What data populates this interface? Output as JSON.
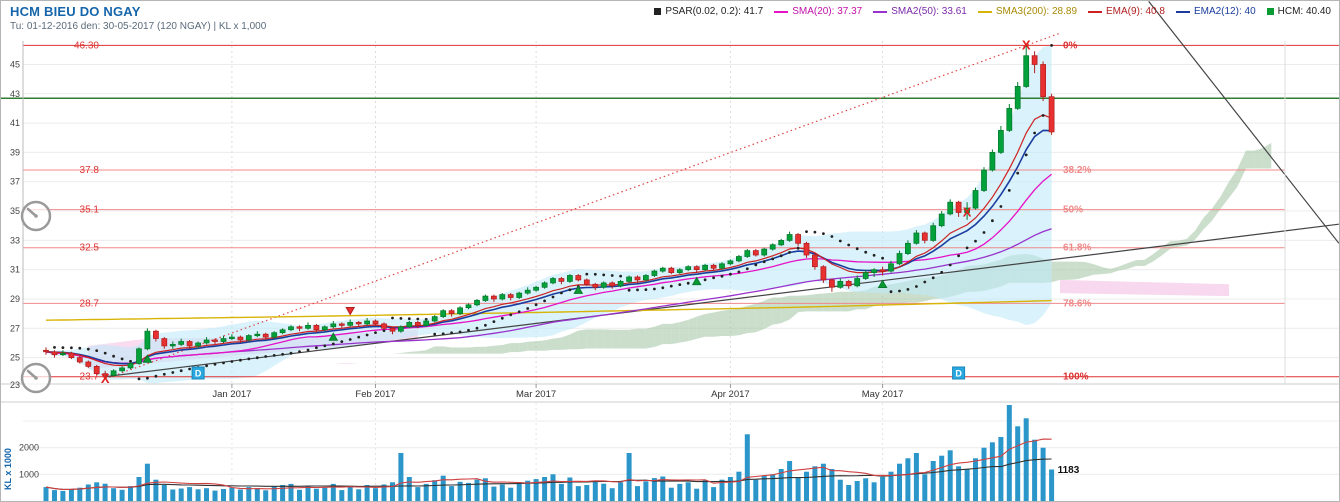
{
  "header": {
    "title": "HCM BIEU DO NGAY",
    "subtitle": "Tu: 01-12-2016 den: 30-05-2017 (120 NGAY) | KL x 1,000"
  },
  "legend": [
    {
      "label": "PSAR(0.02, 0.2): 41.7",
      "color": "#222222",
      "marker": "square",
      "text_color": "#222222"
    },
    {
      "label": "SMA(20): 37.37",
      "color": "#e612c8",
      "marker": "line",
      "text_color": "#c011a8"
    },
    {
      "label": "SMA2(50): 33.61",
      "color": "#9932cc",
      "marker": "line",
      "text_color": "#7a28a8"
    },
    {
      "label": "SMA3(200): 28.89",
      "color": "#d8b407",
      "marker": "line",
      "text_color": "#a88a06"
    },
    {
      "label": "EMA(9): 40.8",
      "color": "#cc2222",
      "marker": "line",
      "text_color": "#b02020"
    },
    {
      "label": "EMA2(12): 40",
      "color": "#1a3c9e",
      "marker": "line",
      "text_color": "#1a3c9e"
    },
    {
      "label": "HCM: 40.40",
      "color": "#0a9a32",
      "marker": "square",
      "text_color": "#222222"
    }
  ],
  "chart_data": {
    "type": "candlestick+volume",
    "title": "HCM BIEU DO NGAY",
    "y_axis": {
      "min": 23,
      "max": 45,
      "step": 2
    },
    "months": [
      {
        "label": "Jan 2017",
        "index": 22
      },
      {
        "label": "Feb 2017",
        "index": 39
      },
      {
        "label": "Mar 2017",
        "index": 58
      },
      {
        "label": "Apr 2017",
        "index": 81
      },
      {
        "label": "May 2017",
        "index": 99
      }
    ],
    "candles": [
      [
        25.5,
        25.7,
        25.2,
        25.4,
        520
      ],
      [
        25.4,
        25.5,
        25.0,
        25.2,
        410
      ],
      [
        25.2,
        25.5,
        25.1,
        25.3,
        380
      ],
      [
        25.3,
        25.4,
        24.9,
        25.0,
        450
      ],
      [
        25.0,
        25.1,
        24.6,
        24.7,
        500
      ],
      [
        24.7,
        24.8,
        24.3,
        24.4,
        620
      ],
      [
        24.4,
        24.5,
        23.8,
        23.9,
        700
      ],
      [
        23.9,
        24.1,
        23.55,
        23.8,
        650
      ],
      [
        23.8,
        24.2,
        23.7,
        24.1,
        480
      ],
      [
        24.1,
        24.4,
        24.0,
        24.3,
        420
      ],
      [
        24.3,
        24.7,
        24.2,
        24.6,
        560
      ],
      [
        24.6,
        25.7,
        24.5,
        25.6,
        900
      ],
      [
        25.6,
        27.0,
        25.5,
        26.8,
        1400
      ],
      [
        26.8,
        26.9,
        26.1,
        26.3,
        800
      ],
      [
        26.3,
        26.4,
        25.6,
        25.8,
        600
      ],
      [
        25.8,
        26.1,
        25.6,
        25.9,
        430
      ],
      [
        25.9,
        26.3,
        25.8,
        26.1,
        470
      ],
      [
        26.1,
        26.2,
        25.6,
        25.8,
        520
      ],
      [
        25.8,
        26.1,
        25.6,
        26.0,
        440
      ],
      [
        26.0,
        26.4,
        25.9,
        26.2,
        480
      ],
      [
        26.2,
        26.3,
        25.9,
        26.1,
        390
      ],
      [
        26.1,
        26.5,
        26.0,
        26.3,
        450
      ],
      [
        26.3,
        26.6,
        26.2,
        26.4,
        500
      ],
      [
        26.4,
        26.5,
        26.0,
        26.2,
        430
      ],
      [
        26.2,
        26.6,
        26.1,
        26.5,
        520
      ],
      [
        26.5,
        26.8,
        26.4,
        26.6,
        460
      ],
      [
        26.6,
        26.7,
        26.2,
        26.4,
        400
      ],
      [
        26.4,
        26.8,
        26.3,
        26.7,
        550
      ],
      [
        26.7,
        27.0,
        26.6,
        26.9,
        600
      ],
      [
        26.9,
        27.2,
        26.8,
        27.1,
        640
      ],
      [
        27.1,
        27.2,
        26.8,
        27.0,
        420
      ],
      [
        27.0,
        27.4,
        26.9,
        27.2,
        580
      ],
      [
        27.2,
        27.3,
        26.7,
        26.9,
        460
      ],
      [
        26.9,
        27.2,
        26.8,
        27.1,
        500
      ],
      [
        27.1,
        27.5,
        27.0,
        27.3,
        640
      ],
      [
        27.3,
        27.4,
        27.0,
        27.2,
        410
      ],
      [
        27.2,
        27.6,
        27.1,
        27.4,
        560
      ],
      [
        27.4,
        27.5,
        27.1,
        27.3,
        440
      ],
      [
        27.3,
        27.7,
        27.2,
        27.5,
        600
      ],
      [
        27.5,
        27.6,
        27.2,
        27.3,
        480
      ],
      [
        27.3,
        27.4,
        26.9,
        27.0,
        620
      ],
      [
        27.0,
        27.1,
        26.6,
        26.8,
        700
      ],
      [
        26.8,
        27.2,
        26.7,
        27.1,
        1800
      ],
      [
        27.1,
        27.5,
        27.0,
        27.4,
        900
      ],
      [
        27.4,
        27.5,
        27.0,
        27.2,
        520
      ],
      [
        27.2,
        27.6,
        27.1,
        27.5,
        640
      ],
      [
        27.5,
        27.9,
        27.4,
        27.8,
        780
      ],
      [
        27.8,
        28.3,
        27.7,
        28.2,
        950
      ],
      [
        28.2,
        28.3,
        27.8,
        28.0,
        560
      ],
      [
        28.0,
        28.5,
        27.9,
        28.4,
        720
      ],
      [
        28.4,
        28.7,
        28.3,
        28.6,
        680
      ],
      [
        28.6,
        29.0,
        28.5,
        28.9,
        800
      ],
      [
        28.9,
        29.3,
        28.8,
        29.2,
        850
      ],
      [
        29.2,
        29.3,
        28.8,
        29.0,
        540
      ],
      [
        29.0,
        29.4,
        28.9,
        29.3,
        620
      ],
      [
        29.3,
        29.4,
        28.9,
        29.1,
        500
      ],
      [
        29.1,
        29.5,
        29.0,
        29.4,
        700
      ],
      [
        29.4,
        29.8,
        29.3,
        29.6,
        760
      ],
      [
        29.6,
        29.9,
        29.5,
        29.8,
        820
      ],
      [
        29.8,
        30.2,
        29.7,
        30.1,
        900
      ],
      [
        30.1,
        30.5,
        30.0,
        30.4,
        1000
      ],
      [
        30.4,
        30.5,
        30.0,
        30.2,
        640
      ],
      [
        30.2,
        30.7,
        30.1,
        30.6,
        880
      ],
      [
        30.6,
        30.7,
        30.2,
        30.3,
        560
      ],
      [
        30.3,
        30.4,
        29.9,
        30.0,
        600
      ],
      [
        30.0,
        30.1,
        29.6,
        29.8,
        720
      ],
      [
        29.8,
        30.2,
        29.7,
        30.1,
        650
      ],
      [
        30.1,
        30.2,
        29.7,
        29.9,
        480
      ],
      [
        29.9,
        30.3,
        29.8,
        30.2,
        700
      ],
      [
        30.2,
        30.6,
        30.1,
        30.5,
        1800
      ],
      [
        30.5,
        30.6,
        30.1,
        30.3,
        560
      ],
      [
        30.3,
        30.7,
        30.2,
        30.6,
        740
      ],
      [
        30.6,
        31.0,
        30.5,
        30.9,
        860
      ],
      [
        30.9,
        31.2,
        30.8,
        31.1,
        920
      ],
      [
        31.1,
        31.2,
        30.7,
        30.8,
        500
      ],
      [
        30.8,
        31.1,
        30.7,
        31.0,
        640
      ],
      [
        31.0,
        31.3,
        30.9,
        31.2,
        700
      ],
      [
        31.2,
        31.3,
        30.8,
        31.0,
        460
      ],
      [
        31.0,
        31.4,
        30.9,
        31.3,
        780
      ],
      [
        31.3,
        31.4,
        30.9,
        31.1,
        520
      ],
      [
        31.1,
        31.5,
        31.0,
        31.4,
        800
      ],
      [
        31.4,
        31.7,
        31.3,
        31.6,
        900
      ],
      [
        31.6,
        32.0,
        31.5,
        31.9,
        1100
      ],
      [
        31.9,
        32.4,
        31.8,
        32.3,
        2500
      ],
      [
        32.3,
        32.4,
        31.9,
        32.0,
        800
      ],
      [
        32.0,
        32.5,
        31.9,
        32.4,
        950
      ],
      [
        32.4,
        32.8,
        32.3,
        32.7,
        1000
      ],
      [
        32.7,
        33.1,
        32.6,
        33.0,
        1200
      ],
      [
        33.0,
        33.6,
        32.9,
        33.4,
        1500
      ],
      [
        33.4,
        33.5,
        32.6,
        32.8,
        900
      ],
      [
        32.8,
        32.9,
        31.8,
        32.0,
        1100
      ],
      [
        32.0,
        32.1,
        31.0,
        31.2,
        1300
      ],
      [
        31.2,
        31.3,
        30.1,
        30.3,
        1400
      ],
      [
        30.3,
        30.4,
        29.5,
        29.8,
        1200
      ],
      [
        29.8,
        30.4,
        29.7,
        30.2,
        800
      ],
      [
        30.2,
        30.3,
        29.7,
        29.9,
        600
      ],
      [
        29.9,
        30.6,
        29.8,
        30.4,
        750
      ],
      [
        30.4,
        31.0,
        30.3,
        30.8,
        850
      ],
      [
        30.8,
        31.1,
        30.5,
        31.0,
        700
      ],
      [
        31.0,
        31.2,
        30.6,
        30.9,
        900
      ],
      [
        30.9,
        31.6,
        30.8,
        31.4,
        1100
      ],
      [
        31.4,
        32.3,
        31.3,
        32.1,
        1400
      ],
      [
        32.1,
        33.0,
        32.0,
        32.8,
        1600
      ],
      [
        32.8,
        33.7,
        32.7,
        33.5,
        1800
      ],
      [
        33.5,
        33.6,
        32.8,
        33.0,
        1000
      ],
      [
        33.0,
        34.2,
        32.9,
        34.0,
        1500
      ],
      [
        34.0,
        35.0,
        33.9,
        34.8,
        1700
      ],
      [
        34.8,
        35.8,
        34.7,
        35.6,
        1900
      ],
      [
        35.6,
        35.7,
        34.6,
        34.9,
        1300
      ],
      [
        34.9,
        35.6,
        34.4,
        35.2,
        1200
      ],
      [
        35.2,
        36.6,
        35.1,
        36.4,
        1600
      ],
      [
        36.4,
        38.0,
        36.3,
        37.8,
        2000
      ],
      [
        37.8,
        39.2,
        37.7,
        39.0,
        2200
      ],
      [
        39.0,
        40.8,
        38.9,
        40.5,
        2400
      ],
      [
        40.5,
        42.3,
        40.4,
        42.0,
        3600
      ],
      [
        42.0,
        43.8,
        41.9,
        43.5,
        2800
      ],
      [
        43.5,
        46.3,
        43.4,
        45.6,
        3100
      ],
      [
        45.6,
        45.9,
        44.4,
        45.0,
        2300
      ],
      [
        45.0,
        45.2,
        42.5,
        42.8,
        2000
      ],
      [
        42.8,
        43.0,
        40.2,
        40.4,
        1183
      ]
    ],
    "fib_levels": [
      {
        "price": 46.3,
        "price_label": "46.30",
        "pct_label": "0%",
        "strong": true
      },
      {
        "price": 37.8,
        "price_label": "37.8",
        "pct_label": "38.2%",
        "strong": false
      },
      {
        "price": 35.1,
        "price_label": "35.1",
        "pct_label": "50%",
        "strong": false
      },
      {
        "price": 32.5,
        "price_label": "32.5",
        "pct_label": "61.8%",
        "strong": false
      },
      {
        "price": 28.7,
        "price_label": "28.7",
        "pct_label": "78.6%",
        "strong": false
      },
      {
        "price": 23.7,
        "price_label": "23.7",
        "pct_label": "100%",
        "strong": true
      }
    ],
    "alert_line": {
      "price": 42.7,
      "color": "#2e7d32"
    },
    "trendlines": [
      {
        "name": "uptrend-dotted",
        "style": "dotted",
        "color": "#e04545",
        "from": {
          "index": 7,
          "price": 23.55
        },
        "to": {
          "index": 120,
          "price": 47.13
        }
      },
      {
        "name": "support-line",
        "style": "solid",
        "color": "#444444",
        "from": {
          "index": 7,
          "price": 23.7
        },
        "to": {
          "index": 153,
          "price": 34.1
        }
      },
      {
        "name": "resistance-line",
        "style": "solid",
        "color": "#444444",
        "from": {
          "index": 130.5,
          "price": 49.3
        },
        "to": {
          "index": 153,
          "price": 32.8
        }
      }
    ],
    "markers_x": [
      {
        "index": 7,
        "price": 23.55,
        "label": "X"
      },
      {
        "index": 109,
        "price": 34.9,
        "label": "X"
      },
      {
        "index": 116,
        "price": 46.3,
        "label": "X"
      }
    ],
    "markers_d": [
      {
        "index": 18,
        "price": 23.95,
        "label": "D"
      },
      {
        "index": 108,
        "price": 23.95,
        "label": "D"
      }
    ],
    "signals": [
      {
        "index": 12,
        "type": "up"
      },
      {
        "index": 34,
        "type": "up"
      },
      {
        "index": 36,
        "type": "down"
      },
      {
        "index": 63,
        "type": "up"
      },
      {
        "index": 77,
        "type": "up"
      },
      {
        "index": 99,
        "type": "up"
      }
    ],
    "shaded_regions": [
      {
        "color": "#f2b1dd",
        "opacity": 0.45,
        "points": [
          [
            5,
            25.8
          ],
          [
            12,
            26.3
          ],
          [
            30,
            26.4
          ],
          [
            44,
            26.9
          ],
          [
            44,
            26.2
          ],
          [
            30,
            25.5
          ],
          [
            12,
            24.6
          ],
          [
            5,
            24.2
          ]
        ]
      },
      {
        "color": "#f2b1dd",
        "opacity": 0.5,
        "points": [
          [
            120,
            30.3
          ],
          [
            140,
            30.0
          ],
          [
            140,
            29.2
          ],
          [
            120,
            29.4
          ]
        ]
      }
    ],
    "indicators": {
      "sma200_points": [
        [
          0,
          27.55
        ],
        [
          30,
          27.8
        ],
        [
          60,
          28.1
        ],
        [
          90,
          28.45
        ],
        [
          119,
          28.89
        ]
      ],
      "psar_af": "0.02",
      "psar_afmax": "0.2"
    },
    "volume_axis": {
      "ticks": [
        {
          "value": 1000,
          "label": "1000"
        },
        {
          "value": 2000,
          "label": "2000"
        },
        {
          "value": 3000,
          "label": ""
        }
      ],
      "kl_label": "KL x 1000",
      "last_value_label": "1183"
    },
    "colors": {
      "up": "#00a13a",
      "up_border": "#047a2c",
      "down": "#e83030",
      "down_border": "#b01f1f",
      "volume": "#2b96c9",
      "bollinger": "#bfe9f8",
      "cloud_up": "#9fc3a0",
      "cloud_down": "#f2b1dd",
      "fib": "#f08a8a",
      "fib_strong": "#dd3333",
      "sma20": "#e612c8",
      "sma50": "#9932cc",
      "sma200": "#d8b407",
      "ema9": "#cc2222",
      "ema12": "#1a3c9e",
      "psar": "#222222",
      "vol_ma_red": "#d04040",
      "vol_ma_dark": "#333333"
    }
  }
}
